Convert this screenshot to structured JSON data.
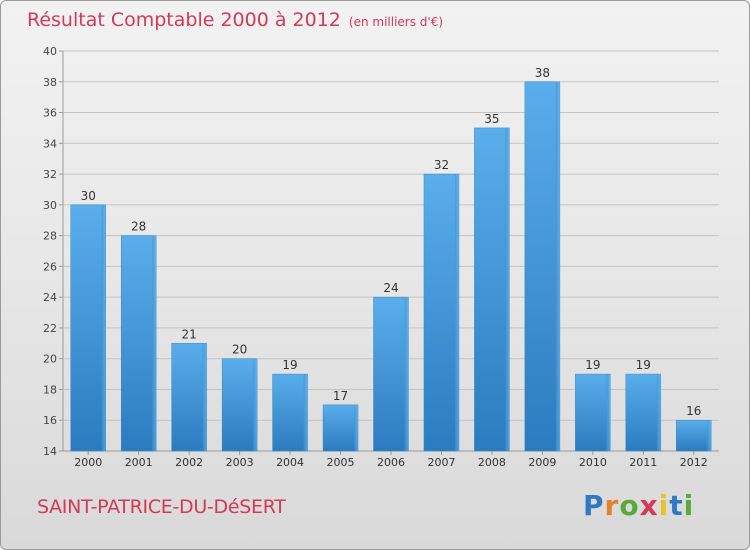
{
  "title": "Résultat Comptable 2000 à 2012",
  "subtitle": "(en milliers d'€)",
  "commune": "SAINT-PATRICE-DU-DéSERT",
  "logo": {
    "letters": [
      "P",
      "r",
      "o",
      "x",
      "i",
      "t",
      "i"
    ],
    "colors": [
      "#2f78c4",
      "#e8812b",
      "#5aa93a",
      "#d23a57",
      "#e8c22b",
      "#2f78c4",
      "#5aa93a"
    ]
  },
  "chart_data": {
    "type": "bar",
    "categories": [
      "2000",
      "2001",
      "2002",
      "2003",
      "2004",
      "2005",
      "2006",
      "2007",
      "2008",
      "2009",
      "2010",
      "2011",
      "2012"
    ],
    "values": [
      30,
      28,
      21,
      20,
      19,
      17,
      24,
      32,
      35,
      38,
      19,
      19,
      16
    ],
    "ylim": [
      14,
      40
    ],
    "yticks": [
      14,
      16,
      18,
      20,
      22,
      24,
      26,
      28,
      30,
      32,
      34,
      36,
      38,
      40
    ],
    "grid": true,
    "bar_color": "#4a9fe0"
  }
}
